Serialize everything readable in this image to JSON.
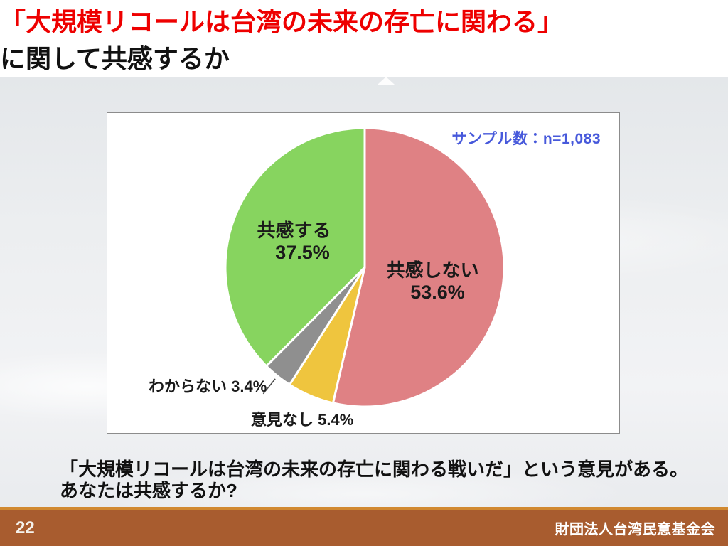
{
  "header": {
    "title_highlight": "「大規模リコールは台湾の未来の存亡に関わる」",
    "title_rest": "に関して共感するか"
  },
  "chart_data": {
    "type": "pie",
    "title": "「大規模リコールは台湾の未来の存亡に関わる」に関して共感するか",
    "sample_note": "サンプル数：n=1,083",
    "start_angle_deg": 0,
    "direction": "clockwise",
    "legend_position": "none",
    "separator_color": "#FFFFFF",
    "slices": [
      {
        "key": "disagree",
        "label": "共感しない",
        "value": 53.6,
        "display": "53.6%",
        "color": "#DF8184"
      },
      {
        "key": "no-opinion",
        "label": "意見なし",
        "value": 5.4,
        "display": "5.4%",
        "color": "#EFC53E"
      },
      {
        "key": "dont-know",
        "label": "わからない",
        "value": 3.4,
        "display": "3.4%",
        "color": "#8F8F8F",
        "leader": true
      },
      {
        "key": "agree",
        "label": "共感する",
        "value": 37.5,
        "display": "37.5%",
        "color": "#87D45F"
      }
    ]
  },
  "question": {
    "line1": "「大規模リコールは台湾の未来の存亡に関わる戦いだ」という意見がある。",
    "line2": "あなたは共感するか?"
  },
  "footer": {
    "page_number": "22",
    "organization": "財団法人台湾民意基金会"
  },
  "colors": {
    "title_red": "#EE0000",
    "sample_note_blue": "#4759DB",
    "footer_brown": "#A85C2F",
    "footer_accent": "#D18931"
  }
}
